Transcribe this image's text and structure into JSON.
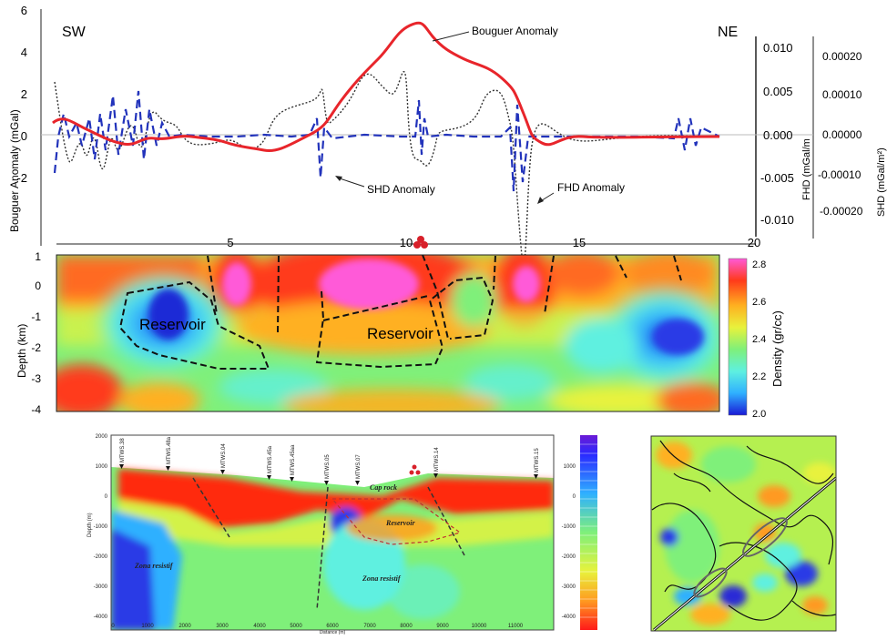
{
  "top": {
    "corner_left": "SW",
    "corner_right": "NE",
    "ylabel_left": "Bouguer Anomaly  (mGal)",
    "ylabel_fhd": "FHD (mGal/m",
    "ylabel_shd": "SHD (mGal/m²)",
    "label_bouguer": "Bouguer Anomaly",
    "label_shd": "SHD Anomaly",
    "label_fhd": "FHD Anomaly",
    "y_ticks": [
      "6",
      "4",
      "2",
      "0",
      "-2"
    ],
    "fhd_ticks": [
      "0.010",
      "0.005",
      "0.000",
      "-0.005",
      "-0.010"
    ],
    "shd_ticks": [
      "0.00020",
      "0.00010",
      "0.00000",
      "-0.00010",
      "-0.00020"
    ],
    "x_ticks": [
      "5",
      "10",
      "15",
      "20"
    ]
  },
  "middle": {
    "ylabel": "Depth (km)",
    "y_ticks": [
      "1",
      "0",
      "-1",
      "-2",
      "-3",
      "-4"
    ],
    "reservoir_1": "Reservoir",
    "reservoir_2": "Reservoir",
    "colorbar_title": "Density (gr/cc)",
    "colorbar_ticks": [
      "2.8",
      "2.6",
      "2.4",
      "2.2",
      "2.0"
    ]
  },
  "bottom": {
    "y_ticks": [
      "2000",
      "1000",
      "0",
      "-1000",
      "-2000",
      "-3000",
      "-4000"
    ],
    "x_ticks": [
      "0",
      "1000",
      "2000",
      "3000",
      "4000",
      "5000",
      "6000",
      "7000",
      "8000",
      "9000",
      "10000",
      "11000"
    ],
    "ylabel": "Depth (m)",
    "xlabel": "Distance (m)",
    "label_cap": "Cap rock",
    "label_reservoir": "Reservoir",
    "label_resistif_1": "Zona resistif",
    "label_resistif_2": "Zona resistif",
    "stations": [
      "MTWS.38",
      "MTWS.48a",
      "MTWS.04",
      "MTWS.45a",
      "MTWS.45aa",
      "MTWS.05",
      "MTWS.07",
      "MTWS.14",
      "MTWS.15"
    ],
    "right_ticks": [
      "1000",
      "0",
      "-1000",
      "-2000",
      "-3000",
      "-4000"
    ]
  },
  "chart_data": [
    {
      "type": "line",
      "x": [
        0,
        1,
        2,
        3,
        4,
        5,
        6,
        7,
        8,
        9,
        10,
        10.5,
        11,
        12,
        13,
        14,
        15,
        16,
        17,
        18,
        19,
        20
      ],
      "series": [
        {
          "name": "Bouguer Anomaly",
          "color": "#e8252b",
          "values": [
            0.5,
            0.3,
            -0.2,
            -0.5,
            0,
            0,
            -0.6,
            -0.8,
            0.4,
            2.5,
            4.8,
            5.3,
            4.9,
            3.8,
            3.2,
            -0.2,
            0,
            -0.1,
            0,
            0,
            0,
            0
          ]
        },
        {
          "name": "SHD Anomaly",
          "color": "#2233bb",
          "values": [
            0,
            0.3,
            -0.5,
            0.8,
            -0.4,
            0.2,
            0,
            -0.2,
            0.4,
            -0.3,
            0,
            -0.1,
            0.1,
            0,
            -0.1,
            0.2,
            0,
            0,
            0,
            0,
            0,
            0
          ]
        },
        {
          "name": "FHD Anomaly",
          "color": "#222222",
          "values": [
            0,
            0.5,
            -0.3,
            0.6,
            0.5,
            0,
            -0.3,
            -0.5,
            0.8,
            2,
            3,
            0.8,
            -0.8,
            2,
            2.6,
            -5.6,
            0,
            0,
            0,
            0,
            0,
            0
          ]
        }
      ],
      "ylim": [
        -4,
        6
      ],
      "xlim": [
        0,
        20
      ]
    },
    {
      "type": "heatmap",
      "ylim": [
        -4,
        1
      ],
      "colorbar": {
        "min": 2.0,
        "max": 2.8,
        "colors": [
          "#1a1ad6",
          "#2fb0ff",
          "#5ef0e0",
          "#7ff07a",
          "#e8f23c",
          "#ffb020",
          "#ff3a1a",
          "#ff5ad8"
        ]
      }
    },
    {
      "type": "heatmap",
      "xlim": [
        0,
        11500
      ],
      "ylim": [
        -4000,
        2000
      ]
    }
  ]
}
